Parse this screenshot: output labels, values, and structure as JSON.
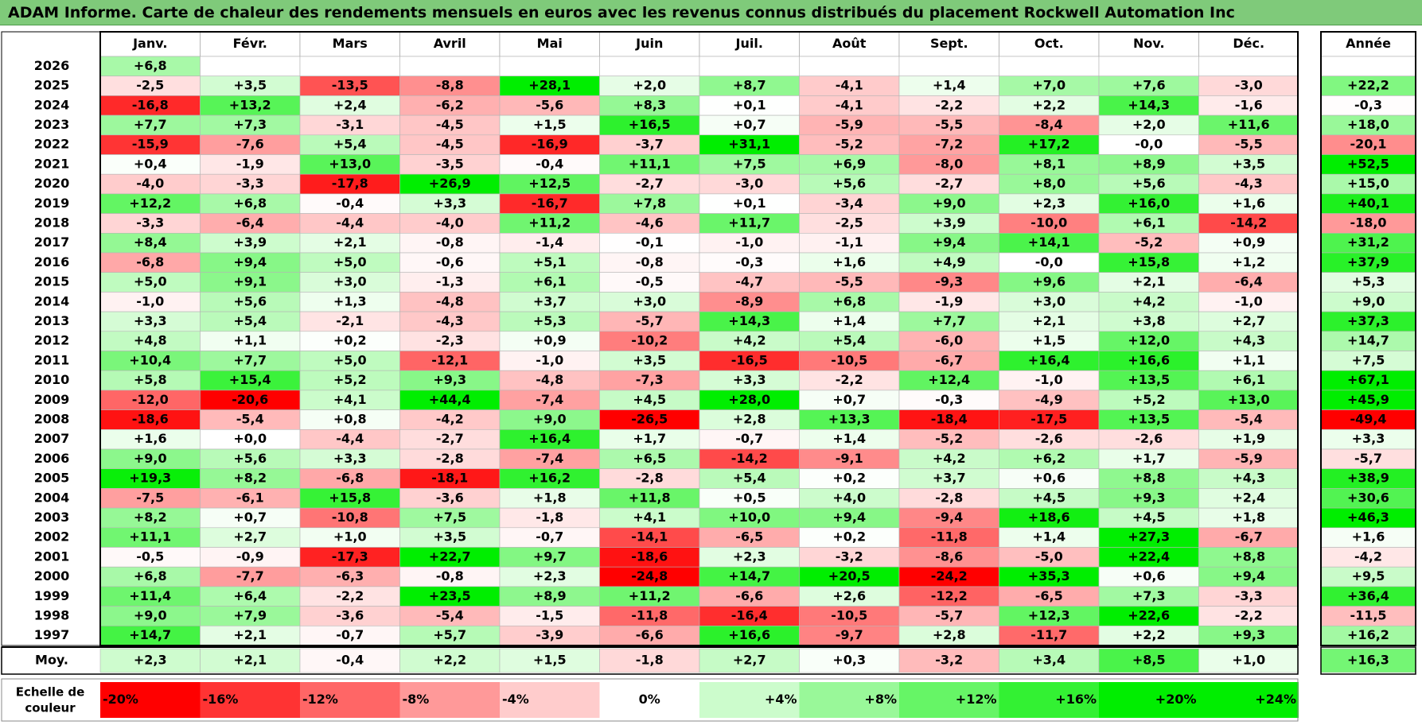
{
  "title": "ADAM Informe. Carte de chaleur des rendements mensuels en euros avec les revenus connus distribués du placement Rockwell Automation Inc",
  "year_header": "Année",
  "legend_label": "Echelle de couleur",
  "colors": {
    "deep_red": "#ff0000",
    "deep_green": "#00ee00",
    "title_bg": "#7fca7a"
  },
  "chart_data": {
    "type": "heatmap",
    "months": [
      "Janv.",
      "Févr.",
      "Mars",
      "Avril",
      "Mai",
      "Juin",
      "Juil.",
      "Août",
      "Sept.",
      "Oct.",
      "Nov.",
      "Déc."
    ],
    "rows": [
      {
        "year": "2026",
        "values": [
          "+6,8",
          "",
          "",
          "",
          "",
          "",
          "",
          "",
          "",
          "",
          "",
          ""
        ],
        "annual": ""
      },
      {
        "year": "2025",
        "values": [
          "-2,5",
          "+3,5",
          "-13,5",
          "-8,8",
          "+28,1",
          "+2,0",
          "+8,7",
          "-4,1",
          "+1,4",
          "+7,0",
          "+7,6",
          "-3,0"
        ],
        "annual": "+22,2"
      },
      {
        "year": "2024",
        "values": [
          "-16,8",
          "+13,2",
          "+2,4",
          "-6,2",
          "-5,6",
          "+8,3",
          "+0,1",
          "-4,1",
          "-2,2",
          "+2,2",
          "+14,3",
          "-1,6"
        ],
        "annual": "-0,3"
      },
      {
        "year": "2023",
        "values": [
          "+7,7",
          "+7,3",
          "-3,1",
          "-4,5",
          "+1,5",
          "+16,5",
          "+0,7",
          "-5,9",
          "-5,5",
          "-8,4",
          "+2,0",
          "+11,6"
        ],
        "annual": "+18,0"
      },
      {
        "year": "2022",
        "values": [
          "-15,9",
          "-7,6",
          "+5,4",
          "-4,5",
          "-16,9",
          "-3,7",
          "+31,1",
          "-5,2",
          "-7,2",
          "+17,2",
          "-0,0",
          "-5,5"
        ],
        "annual": "-20,1"
      },
      {
        "year": "2021",
        "values": [
          "+0,4",
          "-1,9",
          "+13,0",
          "-3,5",
          "-0,4",
          "+11,1",
          "+7,5",
          "+6,9",
          "-8,0",
          "+8,1",
          "+8,9",
          "+3,5"
        ],
        "annual": "+52,5"
      },
      {
        "year": "2020",
        "values": [
          "-4,0",
          "-3,3",
          "-17,8",
          "+26,9",
          "+12,5",
          "-2,7",
          "-3,0",
          "+5,6",
          "-2,7",
          "+8,0",
          "+5,6",
          "-4,3"
        ],
        "annual": "+15,0"
      },
      {
        "year": "2019",
        "values": [
          "+12,2",
          "+6,8",
          "-0,4",
          "+3,3",
          "-16,7",
          "+7,8",
          "+0,1",
          "-3,4",
          "+9,0",
          "+2,3",
          "+16,0",
          "+1,6"
        ],
        "annual": "+40,1"
      },
      {
        "year": "2018",
        "values": [
          "-3,3",
          "-6,4",
          "-4,4",
          "-4,0",
          "+11,2",
          "-4,6",
          "+11,7",
          "-2,5",
          "+3,9",
          "-10,0",
          "+6,1",
          "-14,2"
        ],
        "annual": "-18,0"
      },
      {
        "year": "2017",
        "values": [
          "+8,4",
          "+3,9",
          "+2,1",
          "-0,8",
          "-1,4",
          "-0,1",
          "-1,0",
          "-1,1",
          "+9,4",
          "+14,1",
          "-5,2",
          "+0,9"
        ],
        "annual": "+31,2"
      },
      {
        "year": "2016",
        "values": [
          "-6,8",
          "+9,4",
          "+5,0",
          "-0,6",
          "+5,1",
          "-0,8",
          "-0,3",
          "+1,6",
          "+4,9",
          "-0,0",
          "+15,8",
          "+1,2"
        ],
        "annual": "+37,9"
      },
      {
        "year": "2015",
        "values": [
          "+5,0",
          "+9,1",
          "+3,0",
          "-1,3",
          "+6,1",
          "-0,5",
          "-4,7",
          "-5,5",
          "-9,3",
          "+9,6",
          "+2,1",
          "-6,4"
        ],
        "annual": "+5,3"
      },
      {
        "year": "2014",
        "values": [
          "-1,0",
          "+5,6",
          "+1,3",
          "-4,8",
          "+3,7",
          "+3,0",
          "-8,9",
          "+6,8",
          "-1,9",
          "+3,0",
          "+4,2",
          "-1,0"
        ],
        "annual": "+9,0"
      },
      {
        "year": "2013",
        "values": [
          "+3,3",
          "+5,4",
          "-2,1",
          "-4,3",
          "+5,3",
          "-5,7",
          "+14,3",
          "+1,4",
          "+7,7",
          "+2,1",
          "+3,8",
          "+2,7"
        ],
        "annual": "+37,3"
      },
      {
        "year": "2012",
        "values": [
          "+4,8",
          "+1,1",
          "+0,2",
          "-2,3",
          "+0,9",
          "-10,2",
          "+4,2",
          "+5,4",
          "-6,0",
          "+1,5",
          "+12,0",
          "+4,3"
        ],
        "annual": "+14,7"
      },
      {
        "year": "2011",
        "values": [
          "+10,4",
          "+7,7",
          "+5,0",
          "-12,1",
          "-1,0",
          "+3,5",
          "-16,5",
          "-10,5",
          "-6,7",
          "+16,4",
          "+16,6",
          "+1,1"
        ],
        "annual": "+7,5"
      },
      {
        "year": "2010",
        "values": [
          "+5,8",
          "+15,4",
          "+5,2",
          "+9,3",
          "-4,8",
          "-7,3",
          "+3,3",
          "-2,2",
          "+12,4",
          "-1,0",
          "+13,5",
          "+6,1"
        ],
        "annual": "+67,1"
      },
      {
        "year": "2009",
        "values": [
          "-12,0",
          "-20,6",
          "+4,1",
          "+44,4",
          "-7,4",
          "+4,5",
          "+28,0",
          "+0,7",
          "-0,3",
          "-4,9",
          "+5,2",
          "+13,0"
        ],
        "annual": "+45,9"
      },
      {
        "year": "2008",
        "values": [
          "-18,6",
          "-5,4",
          "+0,8",
          "-4,2",
          "+9,0",
          "-26,5",
          "+2,8",
          "+13,3",
          "-18,4",
          "-17,5",
          "+13,5",
          "-5,4"
        ],
        "annual": "-49,4"
      },
      {
        "year": "2007",
        "values": [
          "+1,6",
          "+0,0",
          "-4,4",
          "-2,7",
          "+16,4",
          "+1,7",
          "-0,7",
          "+1,4",
          "-5,2",
          "-2,6",
          "-2,6",
          "+1,9"
        ],
        "annual": "+3,3"
      },
      {
        "year": "2006",
        "values": [
          "+9,0",
          "+5,6",
          "+3,3",
          "-2,8",
          "-7,4",
          "+6,5",
          "-14,2",
          "-9,1",
          "+4,2",
          "+6,2",
          "+1,7",
          "-5,9"
        ],
        "annual": "-5,7"
      },
      {
        "year": "2005",
        "values": [
          "+19,3",
          "+8,2",
          "-6,8",
          "-18,1",
          "+16,2",
          "-2,8",
          "+5,4",
          "+0,2",
          "+3,7",
          "+0,6",
          "+8,8",
          "+4,3"
        ],
        "annual": "+38,9"
      },
      {
        "year": "2004",
        "values": [
          "-7,5",
          "-6,1",
          "+15,8",
          "-3,6",
          "+1,8",
          "+11,8",
          "+0,5",
          "+4,0",
          "-2,8",
          "+4,5",
          "+9,3",
          "+2,4"
        ],
        "annual": "+30,6"
      },
      {
        "year": "2003",
        "values": [
          "+8,2",
          "+0,7",
          "-10,8",
          "+7,5",
          "-1,8",
          "+4,1",
          "+10,0",
          "+9,4",
          "-9,4",
          "+18,6",
          "+4,5",
          "+1,8"
        ],
        "annual": "+46,3"
      },
      {
        "year": "2002",
        "values": [
          "+11,1",
          "+2,7",
          "+1,0",
          "+3,5",
          "-0,7",
          "-14,1",
          "-6,5",
          "+0,2",
          "-11,8",
          "+1,4",
          "+27,3",
          "-6,7"
        ],
        "annual": "+1,6"
      },
      {
        "year": "2001",
        "values": [
          "-0,5",
          "-0,9",
          "-17,3",
          "+22,7",
          "+9,7",
          "-18,6",
          "+2,3",
          "-3,2",
          "-8,6",
          "-5,0",
          "+22,4",
          "+8,8"
        ],
        "annual": "-4,2"
      },
      {
        "year": "2000",
        "values": [
          "+6,8",
          "-7,7",
          "-6,3",
          "-0,8",
          "+2,3",
          "-24,8",
          "+14,7",
          "+20,5",
          "-24,2",
          "+35,3",
          "+0,6",
          "+9,4"
        ],
        "annual": "+9,5"
      },
      {
        "year": "1999",
        "values": [
          "+11,4",
          "+6,4",
          "-2,2",
          "+23,5",
          "+8,9",
          "+11,2",
          "-6,6",
          "+2,6",
          "-12,2",
          "-6,5",
          "+7,3",
          "-3,3"
        ],
        "annual": "+36,4"
      },
      {
        "year": "1998",
        "values": [
          "+9,0",
          "+7,9",
          "-3,6",
          "-5,4",
          "-1,5",
          "-11,8",
          "-16,4",
          "-10,5",
          "-5,7",
          "+12,3",
          "+22,6",
          "-2,2"
        ],
        "annual": "-11,5"
      },
      {
        "year": "1997",
        "values": [
          "+14,7",
          "+2,1",
          "-0,7",
          "+5,7",
          "-3,9",
          "-6,6",
          "+16,6",
          "-9,7",
          "+2,8",
          "-11,7",
          "+2,2",
          "+9,3"
        ],
        "annual": "+16,2"
      }
    ],
    "average": {
      "label": "Moy.",
      "values": [
        "+2,3",
        "+2,1",
        "-0,4",
        "+2,2",
        "+1,5",
        "-1,8",
        "+2,7",
        "+0,3",
        "-3,2",
        "+3,4",
        "+8,5",
        "+1,0"
      ],
      "annual": "+16,3"
    },
    "scale": [
      "-20%",
      "-16%",
      "-12%",
      "-8%",
      "-4%",
      "0%",
      "+4%",
      "+8%",
      "+12%",
      "+16%",
      "+20%",
      "+24%"
    ],
    "scale_values": [
      -20,
      -16,
      -12,
      -8,
      -4,
      0,
      4,
      8,
      12,
      16,
      20,
      24
    ]
  }
}
